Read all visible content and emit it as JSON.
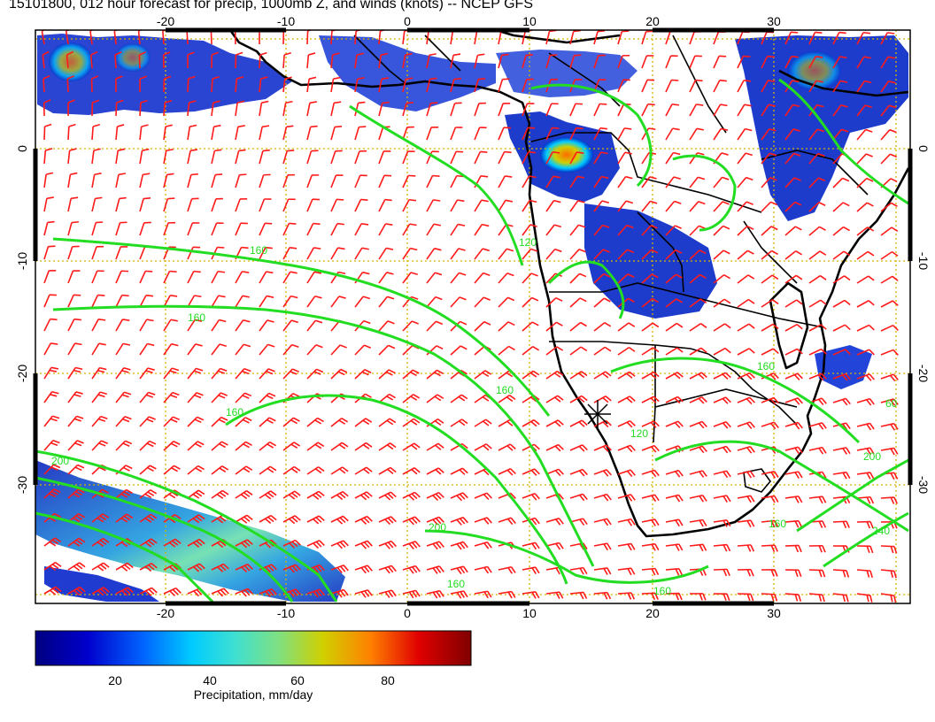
{
  "title": "15101800, 012 hour forecast for precip, 1000mb Z, and winds (knots) -- NCEP GFS",
  "map": {
    "lon_range": [
      -31,
      40
    ],
    "lat_range": [
      -40,
      11
    ],
    "lon_ticks_top": [
      "-20",
      "-10",
      "0",
      "10",
      "20",
      "30"
    ],
    "lon_ticks_bottom": [
      "-20",
      "-10",
      "0",
      "10",
      "20",
      "30"
    ],
    "lat_ticks_left": [
      "0",
      "-10",
      "-20",
      "-30"
    ],
    "lat_ticks_right": [
      "0",
      "-10",
      "-20",
      "-30"
    ],
    "contour_labels": [
      "160",
      "160",
      "160",
      "160",
      "160",
      "160",
      "160",
      "160",
      "120",
      "120",
      "200",
      "200",
      "200",
      "240",
      "60"
    ],
    "colors": {
      "contour": "#22dd22",
      "barbs": "#ff1a1a",
      "grid": "#d4b400",
      "coast": "#000000"
    }
  },
  "colorbar": {
    "tick_labels": [
      "20",
      "40",
      "60",
      "80"
    ],
    "label": "Precipitation, mm/day",
    "range": [
      0,
      100
    ],
    "stops": [
      "#000080",
      "#0000cc",
      "#0066ff",
      "#00ccff",
      "#40e0d0",
      "#80e080",
      "#d0d000",
      "#ff8000",
      "#e00000",
      "#800000"
    ]
  }
}
